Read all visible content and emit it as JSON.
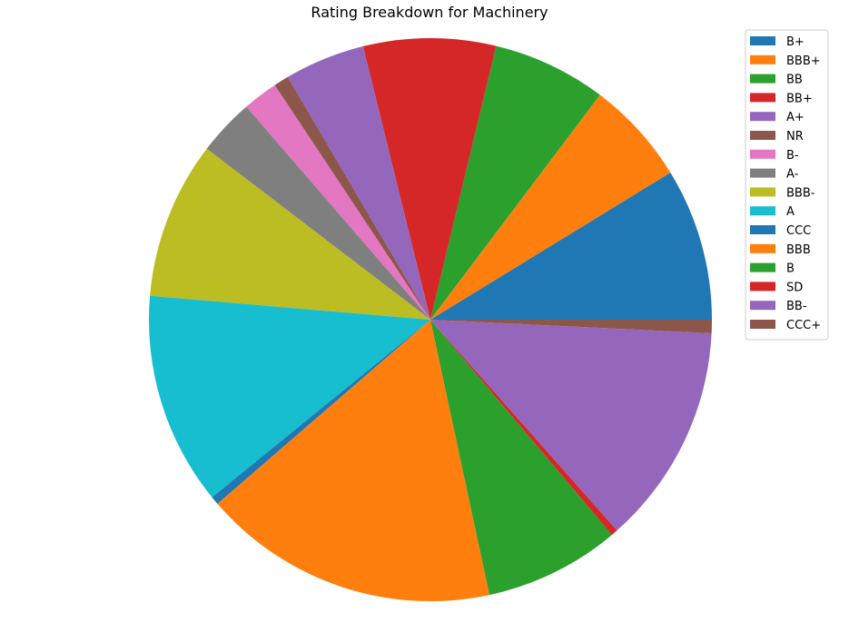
{
  "chart_data": {
    "type": "pie",
    "title": "Rating Breakdown for Machinery",
    "start_angle_deg": 0,
    "direction": "counterclockwise",
    "legend_position": "top-right",
    "slices": [
      {
        "label": "B+",
        "value": 9.1,
        "color": "#1f77b4"
      },
      {
        "label": "BBB+",
        "value": 6.2,
        "color": "#ff7f0e"
      },
      {
        "label": "BB",
        "value": 6.8,
        "color": "#2ca02c"
      },
      {
        "label": "BB+",
        "value": 7.9,
        "color": "#d62728"
      },
      {
        "label": "A+",
        "value": 4.8,
        "color": "#9467bd"
      },
      {
        "label": "NR",
        "value": 0.9,
        "color": "#8c564b"
      },
      {
        "label": "B-",
        "value": 2.1,
        "color": "#e377c2"
      },
      {
        "label": "A-",
        "value": 3.4,
        "color": "#7f7f7f"
      },
      {
        "label": "BBB-",
        "value": 9.4,
        "color": "#bcbd22"
      },
      {
        "label": "A",
        "value": 12.7,
        "color": "#17becf"
      },
      {
        "label": "CCC",
        "value": 0.5,
        "color": "#1f77b4"
      },
      {
        "label": "BBB",
        "value": 17.7,
        "color": "#ff7f0e"
      },
      {
        "label": "B",
        "value": 8.1,
        "color": "#2ca02c"
      },
      {
        "label": "SD",
        "value": 0.4,
        "color": "#d62728"
      },
      {
        "label": "BB-",
        "value": 13.2,
        "color": "#9467bd"
      },
      {
        "label": "CCC+",
        "value": 0.8,
        "color": "#8c564b"
      }
    ]
  }
}
